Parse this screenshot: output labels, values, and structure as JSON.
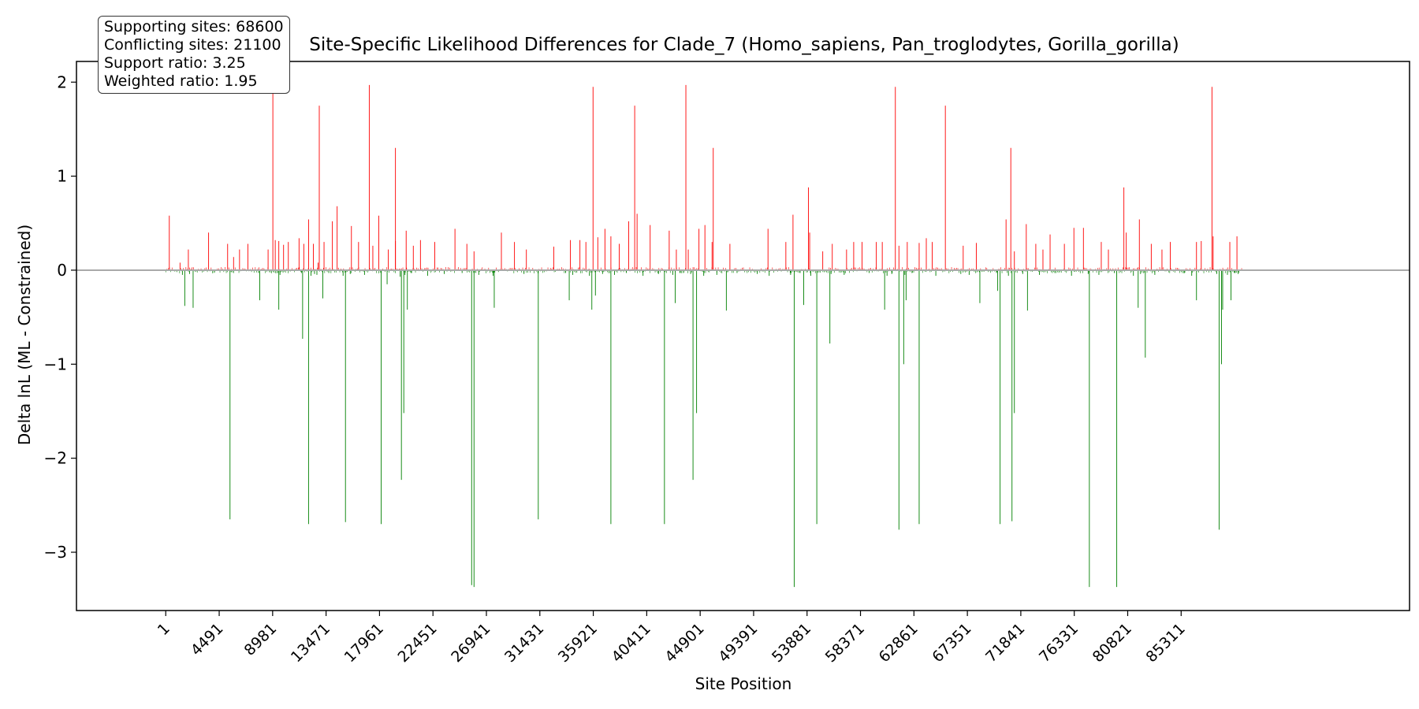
{
  "chart_data": {
    "type": "bar",
    "title": "Site-Specific Likelihood Differences for Clade_7 (Homo_sapiens, Pan_troglodytes, Gorilla_gorilla)",
    "xlabel": "Site Position",
    "ylabel": "Delta lnL (ML - Constrained)",
    "xlim": [
      -7500,
      104500
    ],
    "ylim": [
      -3.62,
      2.22
    ],
    "x_ticks": [
      1,
      4491,
      8981,
      13471,
      17961,
      22451,
      26941,
      31431,
      35921,
      40411,
      44901,
      49391,
      53881,
      58371,
      62861,
      67351,
      71841,
      76331,
      80821,
      85311
    ],
    "y_ticks": [
      -3,
      -2,
      -1,
      0,
      1,
      2
    ],
    "positive_color": "#ff0000",
    "negative_color": "#008000",
    "zero_line_color": "#aaaaaa",
    "series": [
      {
        "values_x": [
          300,
          1200,
          1900,
          3600,
          5200,
          5700,
          6200,
          6900,
          8600,
          9200,
          9500,
          9900,
          10300,
          11200,
          11600,
          12000,
          12400,
          12800,
          13300,
          14000,
          14400,
          15600,
          16200,
          17400,
          17900,
          18700,
          19300,
          20200,
          20800,
          21400,
          22600,
          24300,
          25300,
          25900,
          28200,
          29300,
          30300,
          32600,
          34000,
          34800,
          35300,
          36300,
          36900,
          37400,
          38100,
          38900,
          39600,
          40700,
          42300,
          42900,
          43900,
          44800,
          45300,
          45900,
          47400,
          50600,
          52100,
          52700,
          54100,
          55200,
          56000,
          57200,
          57800,
          58500,
          59700,
          60200,
          61600,
          62300,
          63300,
          63900,
          64400,
          67000,
          68100,
          70600,
          71300,
          72300,
          73100,
          73700,
          74300,
          75500,
          76300,
          77100,
          78600,
          79200,
          80700,
          81800,
          82800,
          83700,
          84400,
          86600,
          87000,
          88000,
          89400,
          90000
        ],
        "values_y": [
          0.58,
          0.08,
          0.22,
          0.4,
          0.28,
          0.14,
          0.22,
          0.28,
          0.22,
          0.32,
          0.31,
          0.27,
          0.3,
          0.34,
          0.28,
          0.54,
          0.28,
          0.08,
          0.3,
          0.52,
          0.68,
          0.47,
          0.3,
          0.26,
          0.58,
          0.22,
          0.31,
          0.42,
          0.26,
          0.32,
          0.3,
          0.44,
          0.28,
          0.2,
          0.4,
          0.3,
          0.22,
          0.25,
          0.32,
          0.32,
          0.3,
          0.35,
          0.44,
          0.36,
          0.28,
          0.52,
          0.6,
          0.48,
          0.42,
          0.22,
          0.22,
          0.44,
          0.48,
          0.3,
          0.28,
          0.44,
          0.3,
          0.59,
          0.4,
          0.2,
          0.28,
          0.22,
          0.3,
          0.3,
          0.3,
          0.3,
          0.26,
          0.3,
          0.29,
          0.34,
          0.3,
          0.26,
          0.29,
          0.54,
          0.2,
          0.49,
          0.28,
          0.22,
          0.38,
          0.28,
          0.45,
          0.45,
          0.3,
          0.22,
          0.4,
          0.54,
          0.28,
          0.22,
          0.3,
          0.3,
          0.31,
          0.36,
          0.3,
          0.36
        ]
      },
      {
        "values_x": [
          9000,
          12900,
          17100,
          19300,
          35900,
          39400,
          43700,
          46000,
          54000,
          61300,
          65500,
          71000,
          80500,
          87900
        ],
        "values_y": [
          1.97,
          1.75,
          1.97,
          1.3,
          1.95,
          1.75,
          1.97,
          1.3,
          0.88,
          1.95,
          1.75,
          1.3,
          0.88,
          1.95
        ]
      },
      {
        "values_x": [
          1400,
          2000,
          5500,
          7800,
          9600,
          11400,
          12200,
          12500,
          12700,
          13700,
          14900,
          15500,
          16700,
          19700,
          20100,
          20600,
          22000,
          23400,
          24900,
          26300,
          27500,
          30100,
          33600,
          34200,
          35600,
          36700,
          37700,
          38700,
          40100,
          41400,
          42600,
          43200,
          44100,
          45200,
          46300,
          48000,
          49700,
          50700,
          52500,
          53300,
          54200,
          55900,
          57000,
          59100,
          60600,
          61000,
          62100,
          62700,
          64700,
          66800,
          67500,
          69800,
          70800,
          72000,
          73400,
          74700,
          76100,
          77500,
          78400,
          79700,
          81300,
          81900,
          83100,
          85600,
          86200,
          88300,
          89200,
          89800,
          90100
        ],
        "values_y": [
          -0.05,
          -0.04,
          -0.02,
          -0.03,
          -0.05,
          -0.03,
          -0.06,
          -0.04,
          -0.05,
          -0.03,
          -0.06,
          -0.04,
          -0.05,
          -0.07,
          -0.05,
          -0.03,
          -0.06,
          -0.04,
          -0.03,
          -0.05,
          -0.06,
          -0.04,
          -0.03,
          -0.05,
          -0.06,
          -0.04,
          -0.05,
          -0.03,
          -0.06,
          -0.04,
          -0.05,
          -0.03,
          -0.04,
          -0.06,
          -0.05,
          -0.03,
          -0.04,
          -0.06,
          -0.05,
          -0.03,
          -0.06,
          -0.04,
          -0.05,
          -0.03,
          -0.06,
          -0.04,
          -0.05,
          -0.03,
          -0.06,
          -0.04,
          -0.05,
          -0.03,
          -0.06,
          -0.04,
          -0.05,
          -0.03,
          -0.06,
          -0.04,
          -0.05,
          -0.03,
          -0.06,
          -0.04,
          -0.05,
          -0.03,
          -0.06,
          -0.04,
          -0.05,
          -0.03,
          -0.04
        ]
      },
      {
        "values_x": [
          1600,
          2300,
          5400,
          7900,
          9500,
          11500,
          12000,
          13200,
          15100,
          18600,
          20300,
          25900,
          27600,
          31300,
          33900,
          35800,
          37400,
          42800,
          47100,
          53600,
          54700,
          55800,
          60400,
          62200,
          63300,
          68400,
          69900,
          72400,
          79900,
          81700,
          82300,
          86600,
          88800,
          89500
        ],
        "values_y": [
          -0.38,
          -0.4,
          -2.65,
          -0.32,
          -0.42,
          -0.73,
          -2.7,
          -0.3,
          -2.68,
          -0.15,
          -0.42,
          -3.37,
          -0.4,
          -2.65,
          -0.32,
          -0.42,
          -2.7,
          -0.35,
          -0.43,
          -0.37,
          -2.7,
          -0.78,
          -0.42,
          -0.32,
          -2.7,
          -0.35,
          -0.22,
          -0.43,
          -3.37,
          -0.4,
          -0.93,
          -0.32,
          -0.42,
          -0.32
        ]
      },
      {
        "values_x": [
          18100,
          19800,
          20000,
          25700,
          36100,
          41900,
          44300,
          44600,
          52800,
          61600,
          62000,
          70100,
          71100,
          71300,
          77600,
          88500,
          88700
        ],
        "values_y": [
          -2.7,
          -2.23,
          -1.52,
          -3.35,
          -0.27,
          -2.7,
          -2.23,
          -1.52,
          -3.37,
          -2.76,
          -1.0,
          -2.7,
          -2.67,
          -1.52,
          -3.37,
          -2.76,
          -1.0
        ]
      }
    ]
  },
  "stats": {
    "supporting": "Supporting sites: 68600",
    "conflicting": "Conflicting sites: 21100",
    "support_ratio": "Support ratio: 3.25",
    "weighted_ratio": "Weighted ratio: 1.95"
  }
}
